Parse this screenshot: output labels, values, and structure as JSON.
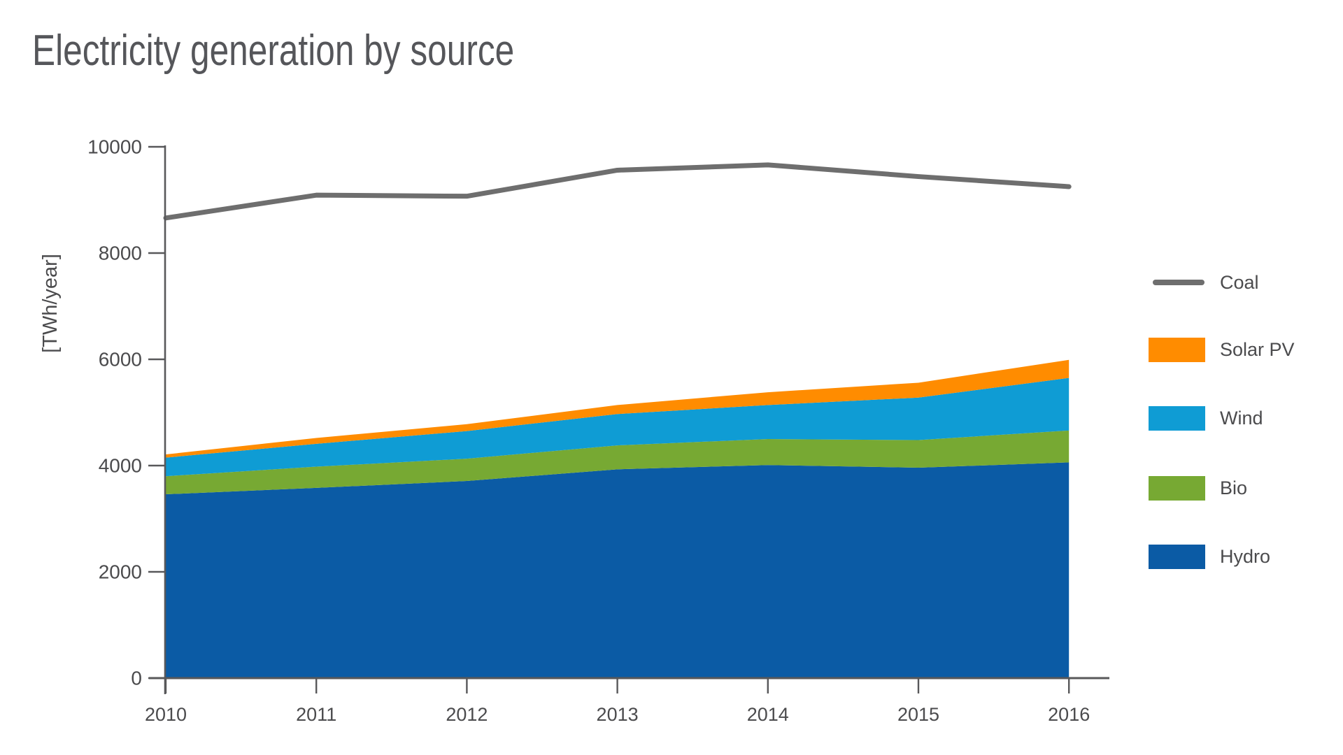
{
  "page": {
    "background": "#ffffff"
  },
  "header": {
    "title": "Electricity generation by source"
  },
  "colors": {
    "axis": "#58585a",
    "tick_text": "#4b4b4d",
    "title_text": "#55565a",
    "hydro": "#0b5ba5",
    "bio": "#77a933",
    "wind": "#0f9cd4",
    "solar_pv": "#ff8c00",
    "coal": "#6e6e6e"
  },
  "chart_data": {
    "type": "area",
    "stacked": true,
    "title": "Electricity generation by source",
    "ylabel": "[TWh/year]",
    "xlabel": "",
    "x": [
      "2010",
      "2011",
      "2012",
      "2013",
      "2014",
      "2015",
      "2016"
    ],
    "ylim": [
      0,
      10000
    ],
    "y_ticks": [
      0,
      2000,
      4000,
      6000,
      8000,
      10000
    ],
    "grid": false,
    "legend_position": "right",
    "series": [
      {
        "name": "Hydro",
        "kind": "area",
        "color": "#0b5ba5",
        "values": [
          3460,
          3580,
          3710,
          3930,
          4010,
          3960,
          4060
        ]
      },
      {
        "name": "Bio",
        "kind": "area",
        "color": "#77a933",
        "values": [
          340,
          400,
          420,
          450,
          490,
          520,
          600
        ]
      },
      {
        "name": "Wind",
        "kind": "area",
        "color": "#0f9cd4",
        "values": [
          350,
          430,
          520,
          590,
          640,
          800,
          990
        ]
      },
      {
        "name": "Solar PV",
        "kind": "area",
        "color": "#ff8c00",
        "values": [
          60,
          110,
          130,
          170,
          240,
          280,
          340
        ]
      },
      {
        "name": "Coal",
        "kind": "line",
        "color": "#6e6e6e",
        "values": [
          8660,
          9090,
          9070,
          9560,
          9660,
          9440,
          9250
        ]
      }
    ]
  },
  "legend": {
    "items": [
      {
        "label": "Coal",
        "color": "#6e6e6e",
        "swatch": "line"
      },
      {
        "label": "Solar PV",
        "color": "#ff8c00",
        "swatch": "rect"
      },
      {
        "label": "Wind",
        "color": "#0f9cd4",
        "swatch": "rect"
      },
      {
        "label": "Bio",
        "color": "#77a933",
        "swatch": "rect"
      },
      {
        "label": "Hydro",
        "color": "#0b5ba5",
        "swatch": "rect"
      }
    ]
  }
}
